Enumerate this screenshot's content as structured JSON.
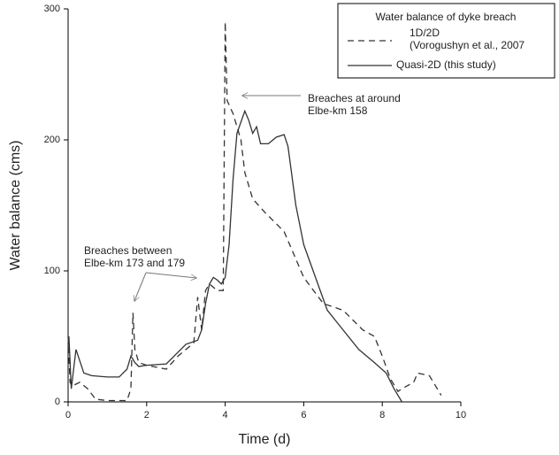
{
  "chart_data": {
    "type": "line",
    "legend_title": "Water balance of dyke breach",
    "xlabel": "Time (d)",
    "ylabel": "Water balance (cms)",
    "xlim": [
      0,
      10
    ],
    "xticks": [
      0,
      2,
      4,
      6,
      8,
      10
    ],
    "ylim": [
      0,
      300
    ],
    "yticks": [
      0,
      100,
      200,
      300
    ],
    "legend": "upper right",
    "annotations": [
      "Breaches at around\nElbe-km 158",
      "Breaches between\nElbe-km 173 and 179"
    ],
    "series": [
      {
        "name": "1D/2D\n(Vorogushyn et al., 2007",
        "color": "#333333",
        "dash": true,
        "x": [
          0.0,
          0.05,
          0.1,
          0.3,
          0.5,
          0.7,
          1.0,
          1.5,
          1.6,
          1.65,
          1.7,
          1.8,
          2.0,
          2.5,
          2.8,
          3.0,
          3.2,
          3.3,
          3.4,
          3.5,
          3.6,
          3.8,
          3.95,
          4.0,
          4.05,
          4.2,
          4.4,
          4.5,
          4.7,
          5.0,
          5.5,
          6.0,
          6.5,
          7.0,
          7.5,
          7.8,
          8.0,
          8.2,
          8.4,
          8.5,
          8.8,
          8.9,
          9.2,
          9.5
        ],
        "values": [
          50,
          15,
          12,
          15,
          10,
          2,
          1,
          1,
          10,
          68,
          40,
          30,
          28,
          25,
          35,
          40,
          45,
          80,
          55,
          85,
          90,
          85,
          85,
          290,
          230,
          220,
          200,
          175,
          155,
          145,
          130,
          95,
          75,
          70,
          55,
          50,
          35,
          18,
          8,
          10,
          15,
          22,
          20,
          5
        ]
      },
      {
        "name": "Quasi-2D (this study)",
        "color": "#333333",
        "dash": false,
        "x": [
          0.02,
          0.08,
          0.2,
          0.4,
          0.6,
          1.0,
          1.3,
          1.5,
          1.6,
          1.7,
          1.8,
          2.0,
          2.5,
          2.8,
          3.0,
          3.3,
          3.4,
          3.5,
          3.6,
          3.7,
          3.8,
          3.9,
          4.0,
          4.1,
          4.2,
          4.3,
          4.5,
          4.6,
          4.7,
          4.8,
          4.9,
          5.1,
          5.3,
          5.5,
          5.6,
          5.8,
          6.0,
          6.3,
          6.6,
          7.0,
          7.4,
          7.8,
          8.1,
          8.3,
          8.5
        ],
        "values": [
          50,
          10,
          40,
          22,
          20,
          19,
          19,
          25,
          35,
          30,
          27,
          28,
          29,
          38,
          44,
          47,
          55,
          75,
          90,
          95,
          93,
          90,
          95,
          120,
          170,
          205,
          222,
          215,
          205,
          210,
          197,
          197,
          202,
          204,
          195,
          150,
          120,
          95,
          70,
          55,
          40,
          30,
          22,
          10,
          0
        ]
      }
    ]
  }
}
